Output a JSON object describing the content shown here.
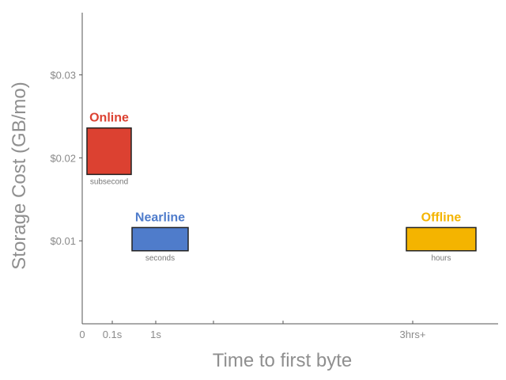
{
  "chart_data": {
    "type": "range-boxes",
    "title": "",
    "xlabel": "Time to first byte",
    "ylabel": "Storage Cost (GB/mo)",
    "x_tick_labels": [
      "0",
      "0.1s",
      "1s",
      "",
      "",
      "3hrs+"
    ],
    "y_ticks": [
      0.01,
      0.02,
      0.03
    ],
    "y_tick_labels": [
      "$0.01",
      "$0.02",
      "$0.03"
    ],
    "ylim": [
      0,
      0.0375
    ],
    "grid": false,
    "legend": "none",
    "series": [
      {
        "name": "Online",
        "subtitle": "subsecond",
        "color": "#dc4131",
        "x_range": [
          "0",
          "0.1s"
        ],
        "y_range": [
          0.018,
          0.0236
        ]
      },
      {
        "name": "Nearline",
        "subtitle": "seconds",
        "color": "#4f7ccb",
        "x_range": [
          "0.1s",
          "1s"
        ],
        "y_range": [
          0.0088,
          0.0116
        ]
      },
      {
        "name": "Offline",
        "subtitle": "hours",
        "color": "#f4b400",
        "x_range": [
          "3hrs+",
          "3hrs+"
        ],
        "y_range": [
          0.0088,
          0.0116
        ]
      }
    ]
  }
}
